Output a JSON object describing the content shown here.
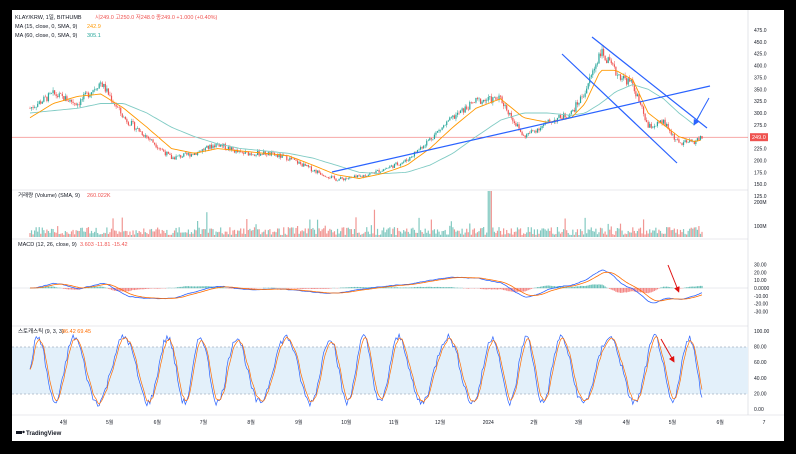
{
  "header": {
    "symbol_line": "KLAY/KRW, 1일, BITHUMB",
    "ohlc": "시249.0  고250.0  저248.0  종249.0  +1.000 (+0.40%)",
    "ma15": "MA (15, close, 0, SMA, 9)",
    "ma15_value": "242.9",
    "ma60": "MA (60, close, 0, SMA, 9)",
    "ma60_value": "305.1"
  },
  "volume": {
    "label": "거래량 (Volume) (SMA, 9)",
    "value": "260.022K",
    "axis": [
      "200M",
      "100M"
    ]
  },
  "macd": {
    "label": "MACD (12, 26, close, 9)",
    "values": "3.603  -11.81  -15.42",
    "axis": [
      "30.00",
      "20.00",
      "10.00",
      "0.0000",
      "-10.00",
      "-20.00",
      "-30.00"
    ]
  },
  "stoch": {
    "label": "스토캐스틱 (9, 3, 3)",
    "values": "86.42  69.45",
    "axis": [
      "100.00",
      "80.00",
      "60.00",
      "40.00",
      "20.00",
      "0.00"
    ]
  },
  "price_axis": [
    "475.0",
    "450.0",
    "425.0",
    "400.0",
    "375.0",
    "350.0",
    "325.0",
    "300.0",
    "275.0",
    "250.0",
    "225.0",
    "200.0",
    "175.0",
    "150.0",
    "125.0"
  ],
  "last_price": "249.0",
  "x_axis": [
    "4월",
    "5월",
    "6월",
    "7월",
    "8월",
    "9월",
    "10월",
    "11월",
    "12월",
    "2024",
    "2월",
    "3월",
    "4월",
    "5월",
    "6월",
    "7"
  ],
  "footer": {
    "brand": "TradingView"
  },
  "colors": {
    "up": "#26a69a",
    "down": "#ef5350",
    "ma15": "#ff9800",
    "ma60": "#80cbc4",
    "trend": "#2962ff",
    "arrow_red": "#e01010",
    "arrow_blue": "#2962ff"
  },
  "chart_data": {
    "type": "candlestick",
    "title": "KLAY/KRW, 1일, BITHUMB",
    "ylim": [
      125,
      475
    ],
    "anchors_x": [
      "2023-03-10",
      "2023-03-25",
      "2023-04-10",
      "2023-04-25",
      "2023-05-10",
      "2023-05-25",
      "2023-06-10",
      "2023-06-25",
      "2023-07-10",
      "2023-07-25",
      "2023-08-10",
      "2023-08-25",
      "2023-09-10",
      "2023-09-25",
      "2023-10-10",
      "2023-10-25",
      "2023-11-10",
      "2023-11-25",
      "2023-12-10",
      "2023-12-25",
      "2024-01-10",
      "2024-01-25",
      "2024-02-10",
      "2024-02-25",
      "2024-03-05",
      "2024-03-15",
      "2024-03-25",
      "2024-04-05",
      "2024-04-15",
      "2024-04-25",
      "2024-05-05",
      "2024-05-15",
      "2024-05-20"
    ],
    "anchors_close": [
      310,
      340,
      320,
      365,
      290,
      250,
      205,
      215,
      235,
      215,
      215,
      205,
      180,
      160,
      165,
      180,
      200,
      245,
      290,
      325,
      330,
      250,
      280,
      300,
      345,
      430,
      385,
      360,
      270,
      280,
      235,
      240,
      249
    ],
    "ma15": [
      290,
      320,
      335,
      340,
      310,
      270,
      225,
      215,
      225,
      220,
      215,
      210,
      190,
      170,
      162,
      172,
      190,
      225,
      270,
      310,
      330,
      290,
      280,
      290,
      320,
      390,
      390,
      370,
      300,
      275,
      250,
      240,
      243
    ],
    "ma60": [
      300,
      305,
      310,
      320,
      320,
      300,
      270,
      250,
      235,
      225,
      220,
      215,
      205,
      190,
      175,
      172,
      175,
      190,
      215,
      250,
      285,
      300,
      300,
      295,
      300,
      320,
      345,
      360,
      350,
      330,
      300,
      275,
      305
    ],
    "series": [
      {
        "name": "MA (15, close, 0, SMA, 9)",
        "last": 242.9
      },
      {
        "name": "MA (60, close, 0, SMA, 9)",
        "last": 305.1
      }
    ],
    "last_price": 249.0
  }
}
